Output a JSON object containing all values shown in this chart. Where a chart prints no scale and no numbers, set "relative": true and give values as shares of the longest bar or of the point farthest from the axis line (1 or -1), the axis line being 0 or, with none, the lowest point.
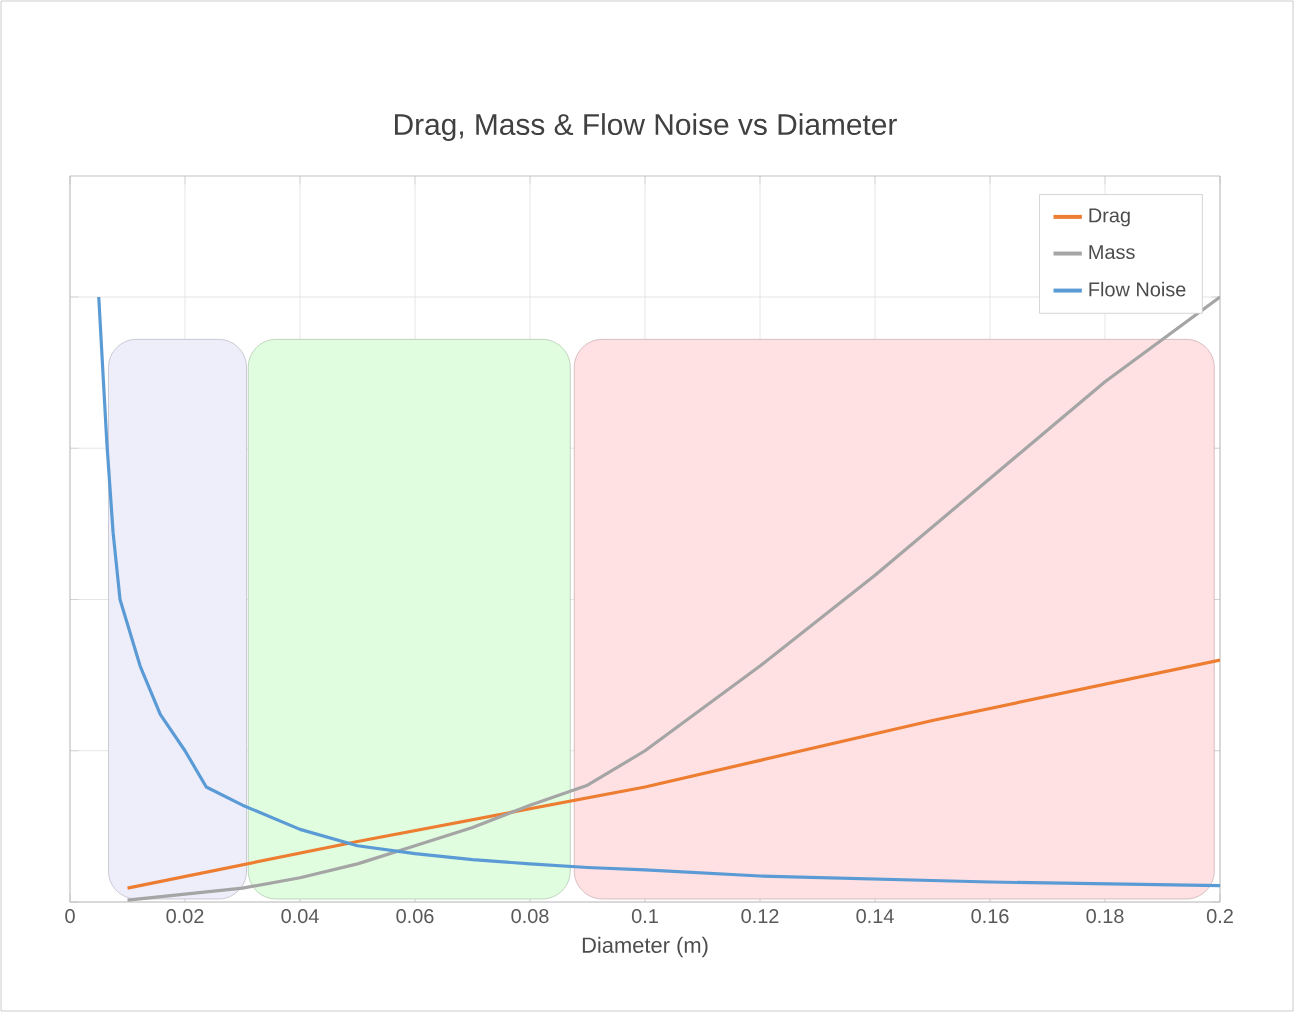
{
  "chart_data": {
    "type": "line",
    "title": "Drag, Mass & Flow Noise vs Diameter",
    "xlabel": "Diameter (m)",
    "relative": true,
    "xlim": [
      0,
      0.2
    ],
    "xticks": [
      0,
      0.02,
      0.04,
      0.06,
      0.08,
      0.1,
      0.12,
      0.14,
      0.16,
      0.18,
      0.2
    ],
    "grid": true,
    "legend": "top right",
    "series": [
      {
        "name": "Drag",
        "color": "#ed7d31",
        "x": [
          0.01,
          0.05,
          0.1,
          0.15,
          0.2
        ],
        "values": [
          0.023,
          0.1,
          0.19,
          0.3,
          0.4
        ]
      },
      {
        "name": "Mass",
        "color": "#a5a5a5",
        "x": [
          0.01,
          0.02,
          0.03,
          0.04,
          0.05,
          0.06,
          0.07,
          0.08,
          0.09,
          0.1,
          0.12,
          0.14,
          0.16,
          0.18,
          0.2
        ],
        "values": [
          0.003,
          0.013,
          0.023,
          0.04,
          0.063,
          0.093,
          0.123,
          0.16,
          0.193,
          0.25,
          0.39,
          0.54,
          0.7,
          0.86,
          1
        ]
      },
      {
        "name": "Flow Noise",
        "color": "#5b9bd5",
        "x": [
          0.005,
          0.0064,
          0.0075,
          0.0087,
          0.0122,
          0.0157,
          0.02,
          0.0237,
          0.03,
          0.04,
          0.05,
          0.06,
          0.07,
          0.08,
          0.09,
          0.1,
          0.12,
          0.16,
          0.2
        ],
        "values": [
          1,
          0.76,
          0.61,
          0.5,
          0.39,
          0.31,
          0.25,
          0.19,
          0.16,
          0.12,
          0.093,
          0.08,
          0.07,
          0.063,
          0.057,
          0.053,
          0.043,
          0.033,
          0.027
        ]
      }
    ],
    "bands": [
      {
        "axis": "x",
        "from": 0.0067,
        "to": 0.0307,
        "color": "#eeeefb"
      },
      {
        "axis": "x",
        "from": 0.031,
        "to": 0.087,
        "color": "#e0fde0"
      },
      {
        "axis": "x",
        "from": 0.0877,
        "to": 0.199,
        "color": "#ffe0e3"
      }
    ]
  }
}
